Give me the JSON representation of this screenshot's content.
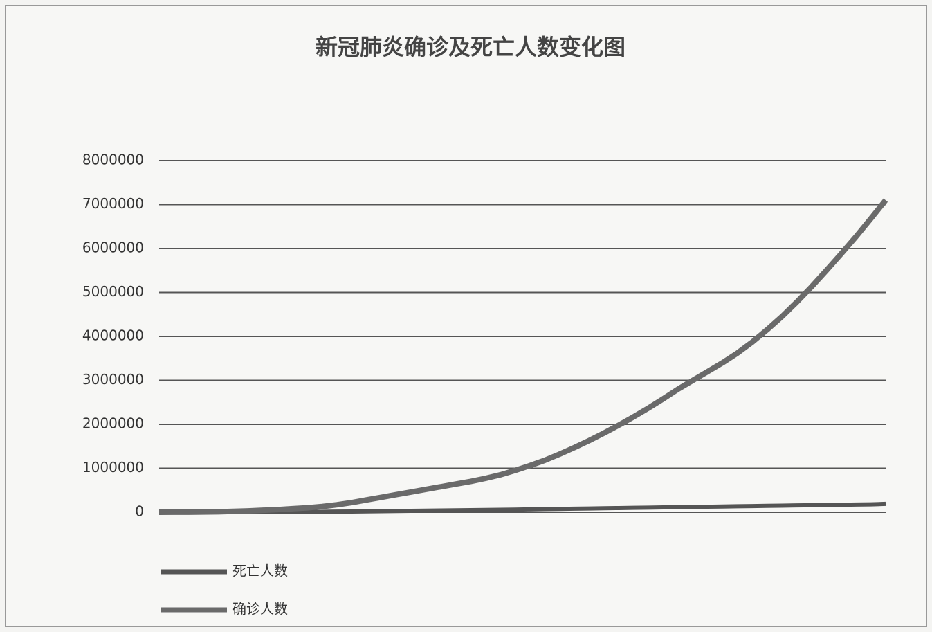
{
  "chart_data": {
    "type": "line",
    "title": "新冠肺炎确诊及死亡人数变化图",
    "categories": [
      null,
      null,
      null,
      null,
      null,
      null,
      null,
      null,
      null,
      null,
      null,
      null,
      null,
      null,
      null,
      null,
      null,
      null,
      null,
      null,
      null,
      null,
      null,
      null,
      null,
      null,
      null,
      null,
      null,
      null,
      null,
      null,
      null,
      null,
      null,
      null,
      null,
      null,
      null,
      null,
      null,
      null,
      null,
      null,
      null,
      null,
      null,
      null,
      null,
      null
    ],
    "series": [
      {
        "name": "死亡人数",
        "color": "#555555",
        "values": [
          0,
          0,
          100,
          200,
          500,
          1000,
          2000,
          3000,
          4500,
          6000,
          8000,
          10000,
          13000,
          16000,
          20000,
          24000,
          28000,
          32000,
          36000,
          40000,
          44000,
          48000,
          52000,
          56000,
          60000,
          65000,
          70000,
          75000,
          80000,
          85000,
          90000,
          95000,
          100000,
          105000,
          110000,
          115000,
          120000,
          125000,
          130000,
          135000,
          140000,
          145000,
          150000,
          155000,
          160000,
          165000,
          170000,
          175000,
          180000,
          190000
        ]
      },
      {
        "name": "确诊人数",
        "color": "#6a6a6a",
        "values": [
          0,
          1000,
          2000,
          5000,
          10000,
          20000,
          30000,
          45000,
          60000,
          80000,
          100000,
          130000,
          170000,
          220000,
          280000,
          340000,
          400000,
          460000,
          520000,
          580000,
          640000,
          700000,
          770000,
          850000,
          950000,
          1060000,
          1180000,
          1320000,
          1470000,
          1630000,
          1800000,
          1980000,
          2170000,
          2370000,
          2580000,
          2800000,
          3000000,
          3200000,
          3400000,
          3620000,
          3870000,
          4150000,
          4450000,
          4780000,
          5130000,
          5500000,
          5880000,
          6270000,
          6680000,
          7100000
        ]
      }
    ],
    "ylim": [
      0,
      8000000
    ],
    "yticks": [
      0,
      1000000,
      2000000,
      3000000,
      4000000,
      5000000,
      6000000,
      7000000,
      8000000
    ],
    "grid": true,
    "legend": "bottom-left"
  }
}
